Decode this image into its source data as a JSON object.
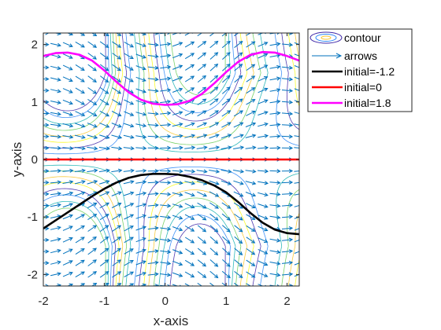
{
  "chart_data": {
    "type": "line",
    "subtype": "direction field with contour lines and solution curves",
    "title": "",
    "xlabel": "x-axis",
    "ylabel": "y-axis",
    "xlim": [
      -2,
      2.2
    ],
    "ylim": [
      -2.2,
      2.2
    ],
    "xticks": [
      -2,
      -1,
      0,
      1,
      2
    ],
    "yticks": [
      -2,
      -1,
      0,
      1,
      2
    ],
    "xtick_labels": [
      "-2",
      "-1",
      "0",
      "1",
      "2"
    ],
    "ytick_labels": [
      "-2",
      "-1",
      "0",
      "1",
      "2"
    ],
    "grid": false,
    "legend_position": "outside top-right",
    "legend": [
      {
        "label": "contour",
        "kind": "contour"
      },
      {
        "label": "arrows",
        "kind": "arrow"
      },
      {
        "label": "initial=-1.2",
        "kind": "line",
        "color": "#000000"
      },
      {
        "label": "initial=0",
        "kind": "line",
        "color": "#ff0000"
      },
      {
        "label": "initial=1.8",
        "kind": "line",
        "color": "#ff00ff"
      }
    ],
    "arrow_color": "#0072bd",
    "contour_colormap": [
      "#3e26a8",
      "#2e87f7",
      "#1ab3b2",
      "#6ccd5a",
      "#f9c52b",
      "#f9fb15"
    ],
    "series": [
      {
        "name": "initial=-1.2",
        "color": "#000000",
        "x": [
          -2,
          -1.8,
          -1.6,
          -1.4,
          -1.2,
          -1,
          -0.8,
          -0.6,
          -0.4,
          -0.2,
          0,
          0.2,
          0.4,
          0.6,
          0.8,
          1,
          1.2,
          1.4,
          1.6,
          1.8,
          2,
          2.2
        ],
        "y": [
          -1.2,
          -1.06,
          -0.92,
          -0.78,
          -0.64,
          -0.51,
          -0.4,
          -0.32,
          -0.27,
          -0.25,
          -0.25,
          -0.26,
          -0.3,
          -0.36,
          -0.45,
          -0.57,
          -0.74,
          -0.93,
          -1.1,
          -1.22,
          -1.28,
          -1.3
        ]
      },
      {
        "name": "initial=0",
        "color": "#ff0000",
        "x": [
          -2,
          2.2
        ],
        "y": [
          0,
          0
        ]
      },
      {
        "name": "initial=1.8",
        "color": "#ff00ff",
        "x": [
          -2,
          -1.8,
          -1.6,
          -1.4,
          -1.2,
          -1,
          -0.8,
          -0.6,
          -0.4,
          -0.2,
          0,
          0.2,
          0.4,
          0.6,
          0.8,
          1,
          1.2,
          1.4,
          1.6,
          1.8,
          2,
          2.2
        ],
        "y": [
          1.8,
          1.85,
          1.86,
          1.82,
          1.72,
          1.55,
          1.35,
          1.17,
          1.04,
          0.97,
          0.95,
          0.96,
          1.02,
          1.14,
          1.32,
          1.52,
          1.7,
          1.82,
          1.87,
          1.86,
          1.8,
          1.72
        ]
      }
    ]
  }
}
